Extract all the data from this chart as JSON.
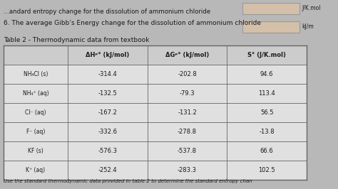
{
  "bg_color": "#b8b8b8",
  "table_bg": "#e8e8e8",
  "header_bg": "#d0d0d0",
  "cell_bg": "#f0f0f0",
  "answer_box_color": "#d4c0a8",
  "text_color": "#1a1a1a",
  "line_color": "#888888",
  "title_line1": "...andard entropy change for the dissolution of ammonium chloride",
  "title_line2": "6. The average Gibb’s Energy change for the dissolution of ammonium chloride",
  "unit1": "J/K.mol",
  "unit2": "kJ/m",
  "table_title": "Table 2 - Thermodynamic data from textbook",
  "col_headers": [
    "ΔHᵖ° (kJ/mol)",
    "ΔGᵖ° (kJ/mol)",
    "S° (J/K.mol)"
  ],
  "row_labels": [
    "NH₄Cl (s)",
    "NH₄⁺ (aq)",
    "Cl⁻ (aq)",
    "F⁻ (aq)",
    "KF (s)",
    "K⁺ (aq)"
  ],
  "data": [
    [
      "-314.4",
      "-202.8",
      "94.6"
    ],
    [
      "-132.5",
      "-79.3",
      "113.4"
    ],
    [
      "-167.2",
      "-131.2",
      "56.5"
    ],
    [
      "-332.6",
      "-278.8",
      "-13.8"
    ],
    [
      "-576.3",
      "-537.8",
      "66.6"
    ],
    [
      "-252.4",
      "-283.3",
      "102.5"
    ]
  ],
  "footer": "Use the standard thermodynamic data provided in table 2 to determine the standard entropy chan"
}
